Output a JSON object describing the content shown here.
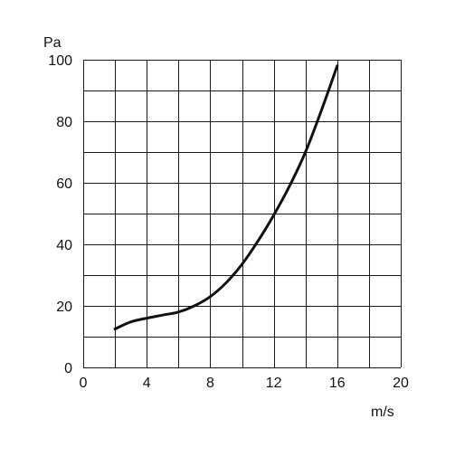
{
  "chart_data": {
    "type": "line",
    "xunit": "m/s",
    "yunit": "Pa",
    "xlim": [
      0,
      20
    ],
    "ylim": [
      0,
      100
    ],
    "x_ticks": [
      0,
      4,
      8,
      12,
      16,
      20
    ],
    "y_ticks": [
      0,
      20,
      40,
      60,
      80,
      100
    ],
    "x_ticklabels": [
      "0",
      "4",
      "8",
      "12",
      "16",
      "20"
    ],
    "y_ticklabels": [
      "0",
      "20",
      "40",
      "60",
      "80",
      "100"
    ],
    "grid": true,
    "grid_x_step": 2,
    "grid_y_step": 10,
    "series": [
      {
        "x": [
          2,
          3,
          4,
          5,
          6,
          7,
          8,
          9,
          10,
          11,
          12,
          13,
          14,
          15,
          16
        ],
        "y": [
          12.5,
          14.8,
          16.0,
          17.0,
          18.0,
          20.0,
          23.0,
          27.5,
          33.5,
          41.0,
          49.5,
          59.0,
          70.0,
          83.5,
          98.0
        ],
        "color": "#111111"
      }
    ]
  }
}
